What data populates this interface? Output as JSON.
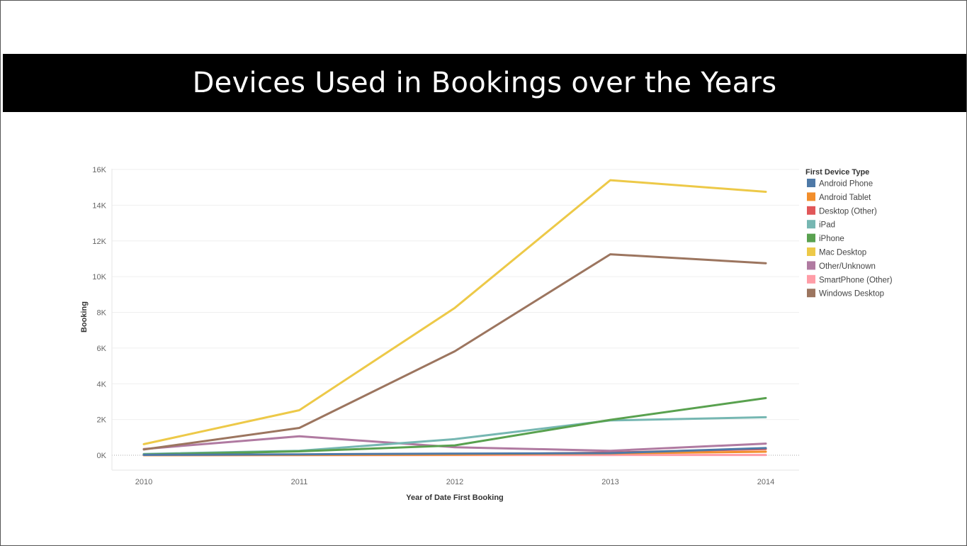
{
  "slide": {
    "title": "Devices Used in Bookings over the Years"
  },
  "chart_data": {
    "type": "line",
    "xlabel": "Year of Date First Booking",
    "ylabel": "Booking",
    "x": [
      2010,
      2011,
      2012,
      2013,
      2014
    ],
    "ylim": [
      0,
      16000
    ],
    "yticks": [
      0,
      2000,
      4000,
      6000,
      8000,
      10000,
      12000,
      14000,
      16000
    ],
    "ytick_labels": [
      "0K",
      "2K",
      "4K",
      "6K",
      "8K",
      "10K",
      "12K",
      "14K",
      "16K"
    ],
    "grid": true,
    "legend": {
      "title": "First Device Type",
      "placement": "right"
    },
    "series": [
      {
        "name": "Android Phone",
        "color": "#4e79a7",
        "values": [
          20,
          50,
          90,
          120,
          400
        ]
      },
      {
        "name": "Android Tablet",
        "color": "#f28e2b",
        "values": [
          5,
          15,
          30,
          100,
          200
        ]
      },
      {
        "name": "Desktop (Other)",
        "color": "#e15759",
        "values": [
          10,
          20,
          40,
          150,
          350
        ]
      },
      {
        "name": "iPad",
        "color": "#76b7b2",
        "values": [
          70,
          250,
          900,
          1950,
          2130
        ]
      },
      {
        "name": "iPhone",
        "color": "#59a14f",
        "values": [
          40,
          220,
          550,
          1980,
          3200
        ]
      },
      {
        "name": "Mac Desktop",
        "color": "#edc948",
        "values": [
          620,
          2520,
          8250,
          15400,
          14750
        ]
      },
      {
        "name": "Other/Unknown",
        "color": "#b07aa1",
        "values": [
          350,
          1060,
          450,
          250,
          650
        ]
      },
      {
        "name": "SmartPhone (Other)",
        "color": "#ff9da7",
        "values": [
          5,
          5,
          10,
          10,
          15
        ]
      },
      {
        "name": "Windows Desktop",
        "color": "#9c755f",
        "values": [
          320,
          1530,
          5820,
          11250,
          10750
        ]
      }
    ]
  }
}
